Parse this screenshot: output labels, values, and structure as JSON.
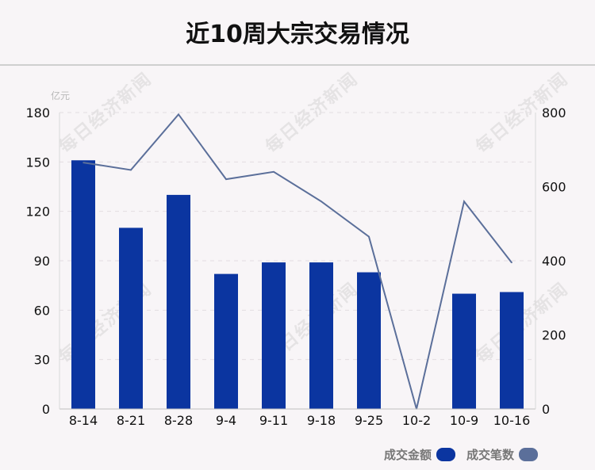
{
  "title": "近10周大宗交易情况",
  "watermark": "每日经济新闻",
  "legend": {
    "amount_label": "成交金额",
    "count_label": "成交笔数",
    "amount_color": "#0b35a0",
    "count_color": "#5b6f9a"
  },
  "chart_data": {
    "type": "bar",
    "categories": [
      "8-14",
      "8-21",
      "8-28",
      "9-4",
      "9-11",
      "9-18",
      "9-25",
      "10-2",
      "10-9",
      "10-16"
    ],
    "y_left_unit": "亿元",
    "y_left_ticks": [
      "0",
      "30",
      "60",
      "90",
      "120",
      "150",
      "180"
    ],
    "y_right_ticks": [
      "0",
      "200",
      "400",
      "600",
      "800"
    ],
    "ylim_left": [
      0,
      180
    ],
    "ylim_right": [
      0,
      800
    ],
    "series": [
      {
        "name": "成交金额",
        "type": "bar",
        "axis": "left",
        "values": [
          151,
          110,
          130,
          82,
          89,
          89,
          83,
          0,
          70,
          71
        ]
      },
      {
        "name": "成交笔数",
        "type": "line",
        "axis": "right",
        "values": [
          665,
          645,
          795,
          620,
          640,
          560,
          465,
          0,
          560,
          395
        ]
      }
    ],
    "grid": true,
    "legend_position": "bottom-right"
  }
}
